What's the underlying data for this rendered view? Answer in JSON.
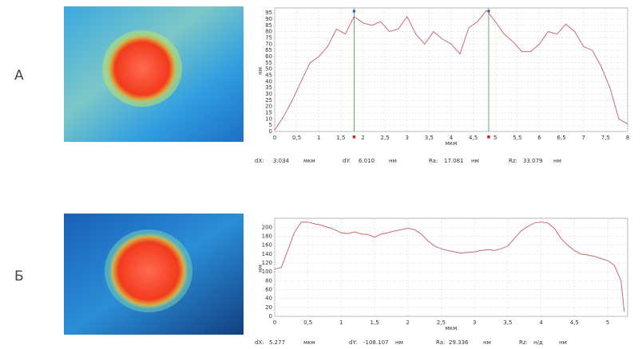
{
  "chart_data": [
    {
      "type": "line",
      "panel_label": "А",
      "xlabel": "мкм",
      "ylabel": "нм",
      "color": "#c86a74",
      "x": [
        0,
        0.2,
        0.4,
        0.6,
        0.8,
        1.0,
        1.2,
        1.4,
        1.6,
        1.8,
        2.0,
        2.2,
        2.4,
        2.6,
        2.8,
        3.0,
        3.2,
        3.4,
        3.6,
        3.8,
        4.0,
        4.2,
        4.4,
        4.6,
        4.8,
        5.0,
        5.2,
        5.4,
        5.6,
        5.8,
        6.0,
        6.2,
        6.4,
        6.6,
        6.8,
        7.0,
        7.2,
        7.4,
        7.6,
        7.8,
        8.0
      ],
      "values": [
        1,
        12,
        25,
        40,
        55,
        60,
        68,
        82,
        78,
        92,
        87,
        85,
        88,
        80,
        82,
        92,
        78,
        70,
        80,
        74,
        70,
        62,
        83,
        88,
        97,
        88,
        78,
        72,
        64,
        64,
        70,
        80,
        78,
        86,
        80,
        68,
        65,
        52,
        35,
        10,
        6
      ],
      "cursor_x": [
        1.8,
        4.85
      ],
      "xlim": [
        0,
        8
      ],
      "ylim": [
        0,
        97
      ],
      "xticks": [
        0,
        {
          "value": 0.5,
          "label": "0,5"
        },
        1,
        {
          "value": 1.5,
          "label": "1,5"
        },
        2,
        {
          "value": 2.5,
          "label": "2,5"
        },
        3,
        {
          "value": 3.5,
          "label": "3,5"
        },
        4,
        {
          "value": 4.5,
          "label": "4,5"
        },
        5,
        {
          "value": 5.5,
          "label": "5,5"
        },
        6,
        {
          "value": 6.5,
          "label": "6,5"
        },
        7,
        {
          "value": 7.5,
          "label": "7,5"
        },
        8
      ],
      "yticks": [
        0,
        5,
        10,
        15,
        20,
        25,
        30,
        35,
        40,
        45,
        50,
        55,
        60,
        65,
        70,
        75,
        80,
        85,
        90,
        95
      ],
      "grid": true,
      "readouts": [
        [
          "dX:",
          "3.034",
          "мкм"
        ],
        [
          "dY:",
          "6.010",
          "нм"
        ],
        [
          "Ra:",
          "17.081",
          "нм"
        ],
        [
          "Rz:",
          "33.079",
          "нм"
        ]
      ]
    },
    {
      "type": "line",
      "panel_label": "Б",
      "xlabel": "мкм",
      "ylabel": "нм",
      "color": "#c86a74",
      "x": [
        0,
        0.1,
        0.2,
        0.3,
        0.4,
        0.5,
        0.6,
        0.7,
        0.8,
        0.9,
        1.0,
        1.1,
        1.2,
        1.3,
        1.4,
        1.5,
        1.6,
        1.7,
        1.8,
        1.9,
        2.0,
        2.1,
        2.2,
        2.3,
        2.4,
        2.5,
        2.6,
        2.7,
        2.8,
        2.9,
        3.0,
        3.1,
        3.2,
        3.3,
        3.4,
        3.5,
        3.6,
        3.7,
        3.8,
        3.9,
        4.0,
        4.1,
        4.2,
        4.3,
        4.4,
        4.5,
        4.6,
        4.7,
        4.8,
        4.9,
        5.0,
        5.1,
        5.2,
        5.25
      ],
      "values": [
        106,
        110,
        150,
        190,
        212,
        212,
        208,
        205,
        200,
        195,
        188,
        186,
        190,
        185,
        184,
        178,
        185,
        188,
        192,
        195,
        198,
        195,
        185,
        170,
        158,
        152,
        148,
        145,
        142,
        144,
        145,
        148,
        150,
        148,
        152,
        158,
        175,
        192,
        202,
        210,
        212,
        210,
        198,
        175,
        160,
        148,
        140,
        138,
        135,
        130,
        125,
        115,
        80,
        10
      ],
      "xlim": [
        0,
        5.3
      ],
      "ylim": [
        0,
        215
      ],
      "xticks": [
        0,
        {
          "value": 0.5,
          "label": "0,5"
        },
        1,
        {
          "value": 1.5,
          "label": "1,5"
        },
        2,
        {
          "value": 2.5,
          "label": "2,5"
        },
        3,
        {
          "value": 3.5,
          "label": "3,5"
        },
        4,
        {
          "value": 4.5,
          "label": "4,5"
        },
        5
      ],
      "yticks": [
        0,
        20,
        40,
        60,
        80,
        100,
        120,
        140,
        160,
        180,
        200
      ],
      "grid": true,
      "readouts": [
        [
          "dX:",
          "5.277",
          "мкм"
        ],
        [
          "dY:",
          "-108.107",
          "нм"
        ],
        [
          "Ra:",
          "29.336",
          "нм"
        ],
        [
          "Rz:",
          "н/д",
          "нм"
        ]
      ]
    }
  ]
}
